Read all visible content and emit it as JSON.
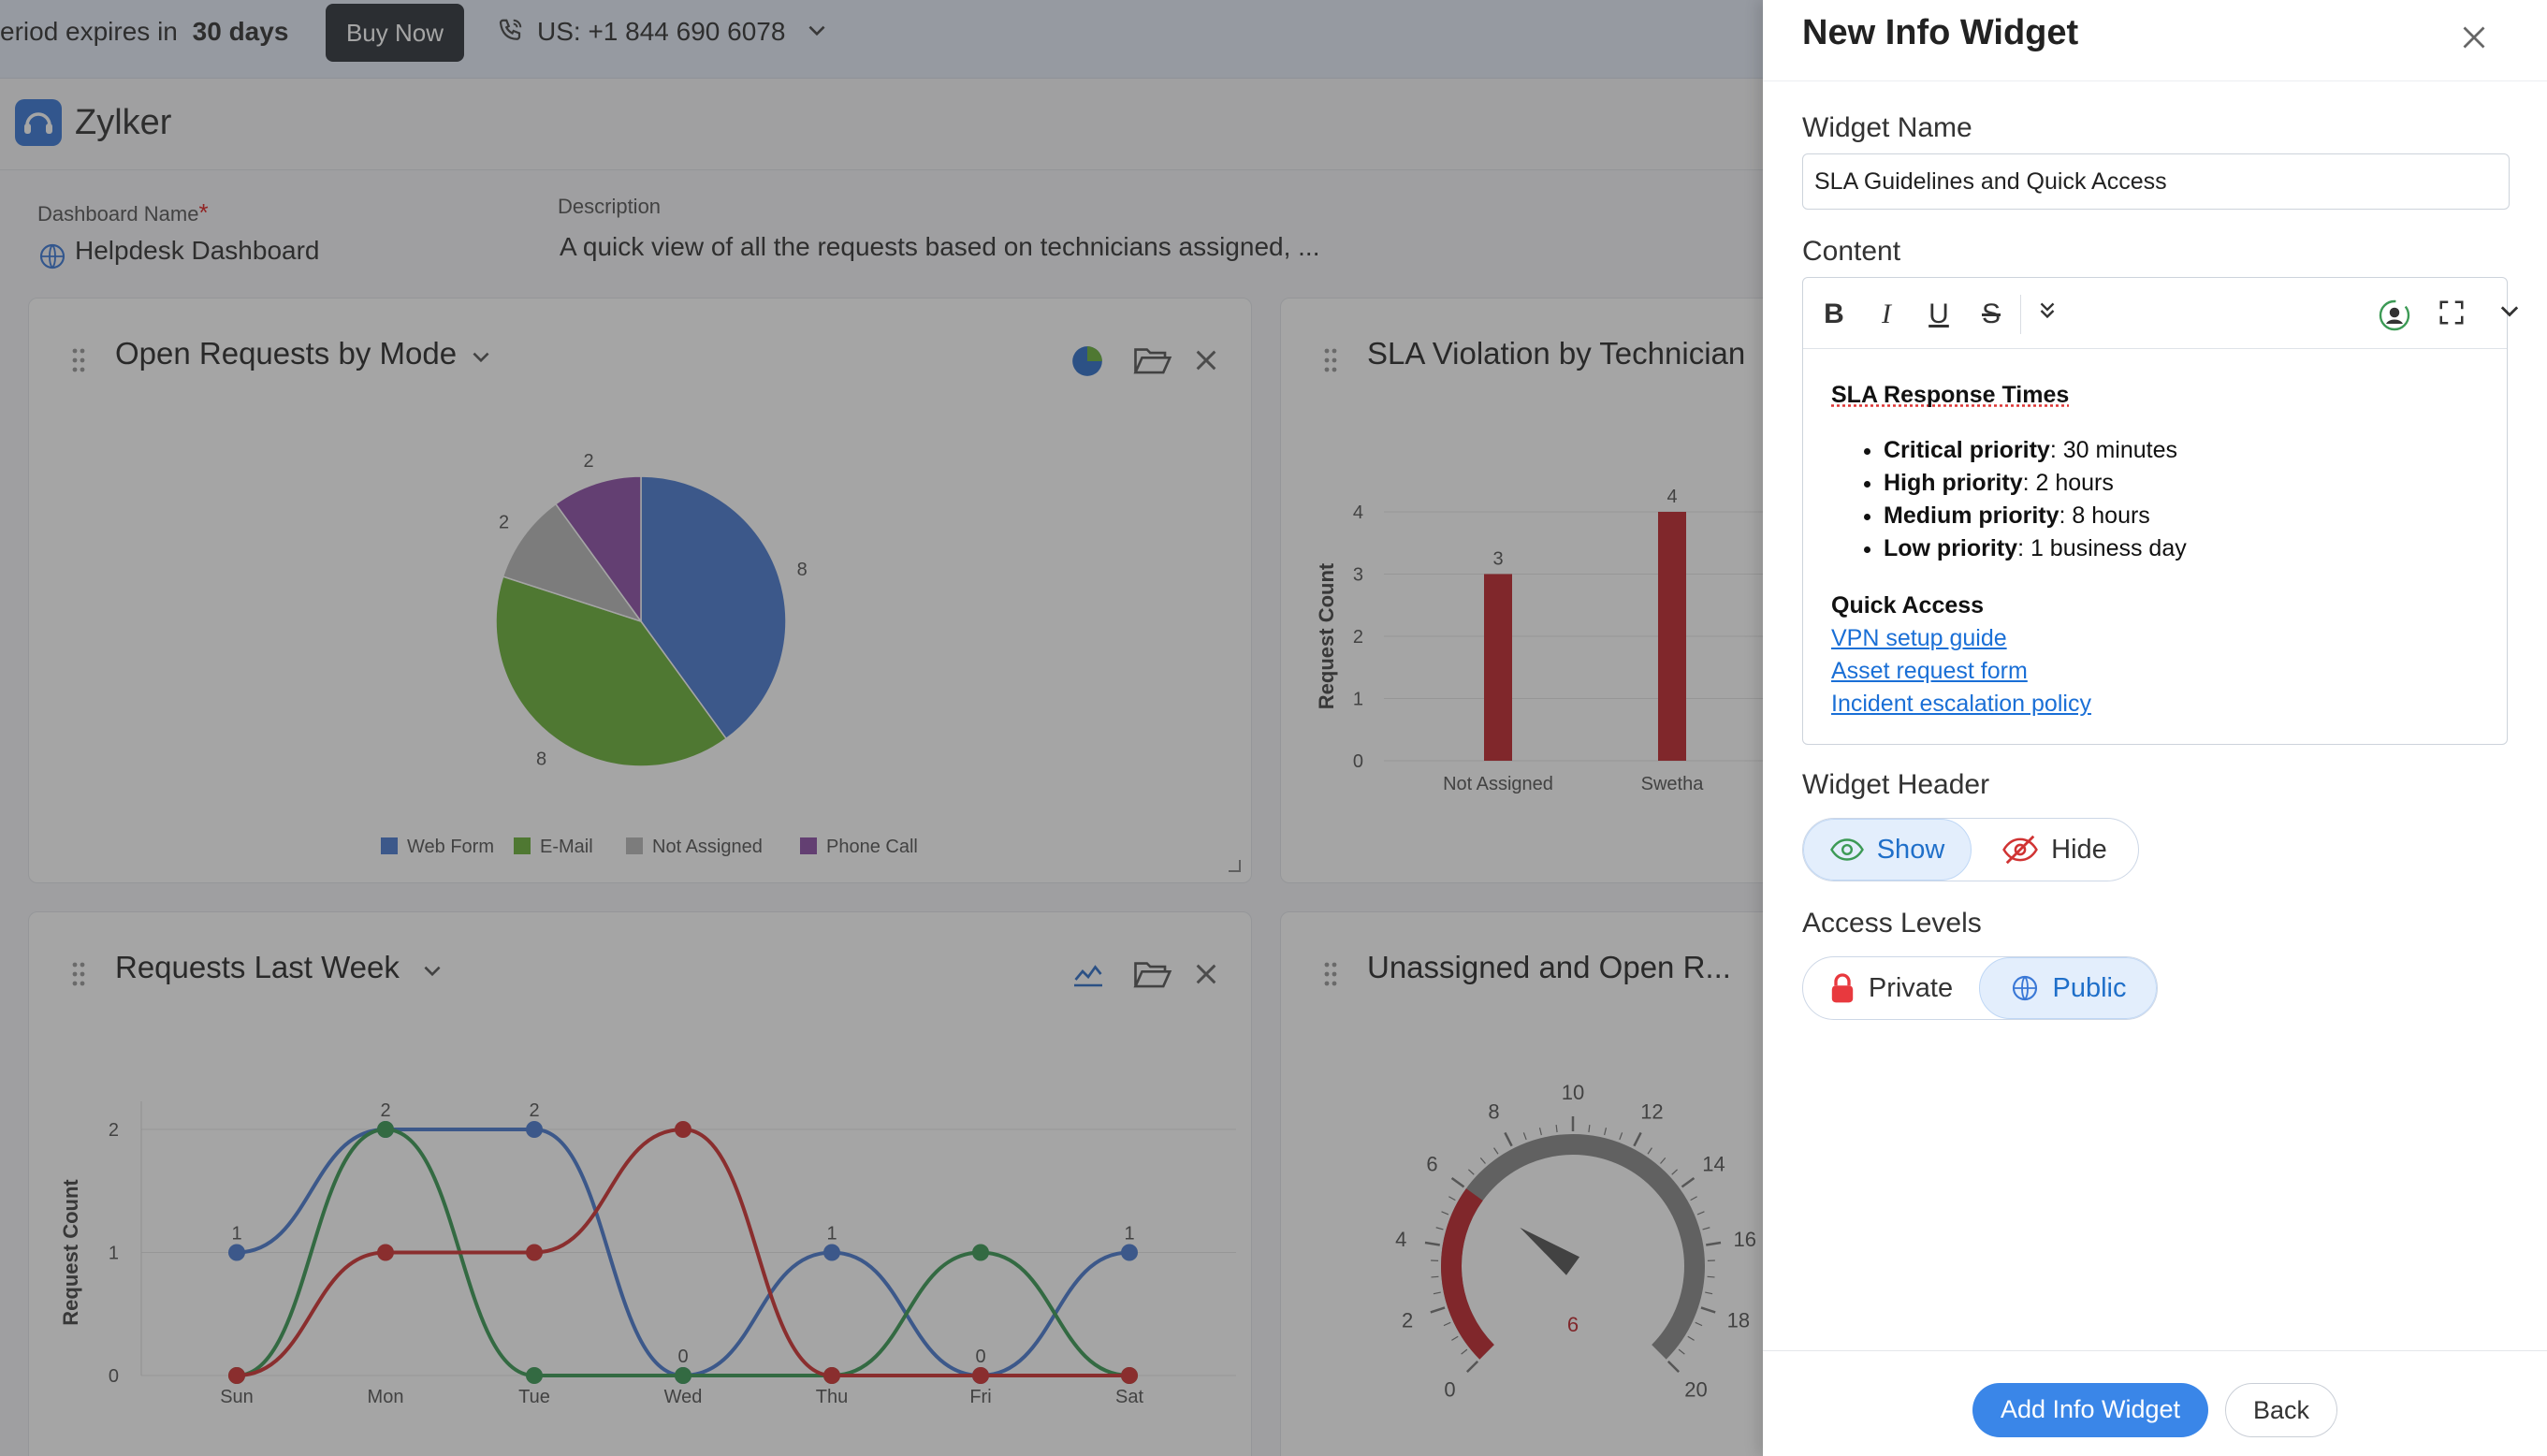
{
  "topbar": {
    "trial_prefix": "eriod expires in",
    "trial_days": "30 days",
    "buy_label": "Buy Now",
    "phone": "US: +1 844 690 6078"
  },
  "app": {
    "name": "Zylker"
  },
  "dashboard": {
    "name_label": "Dashboard Name",
    "required_mark": "*",
    "name_value": "Helpdesk Dashboard",
    "desc_label": "Description",
    "desc_value": "A quick view of all the requests based on technicians assigned, ..."
  },
  "widgets": {
    "open_requests": {
      "title": "Open Requests by Mode"
    },
    "sla_violation": {
      "title": "SLA Violation by Technician"
    },
    "requests_last_week": {
      "title": "Requests Last Week"
    },
    "unassigned": {
      "title": "Unassigned and Open R..."
    }
  },
  "chart_data": [
    {
      "type": "pie",
      "title": "Open Requests by Mode",
      "categories": [
        "Web Form",
        "E-Mail",
        "Not Assigned",
        "Phone Call"
      ],
      "values": [
        8,
        8,
        2,
        2
      ],
      "colors": [
        "#4a7bd0",
        "#6bb23a",
        "#b8b8b8",
        "#8e50a8"
      ],
      "legend": "bottom"
    },
    {
      "type": "bar",
      "title": "SLA Violation by Technician",
      "categories": [
        "Not Assigned",
        "Swetha"
      ],
      "values": [
        3,
        4
      ],
      "ylabel": "Request Count",
      "yticks": [
        "0",
        "1",
        "2",
        "3",
        "4"
      ],
      "ylim": [
        0,
        4
      ],
      "color": "#c0272d"
    },
    {
      "type": "line",
      "title": "Requests Last Week",
      "categories": [
        "Sun",
        "Mon",
        "Tue",
        "Wed",
        "Thu",
        "Fri",
        "Sat"
      ],
      "ylabel": "Request Count",
      "yticks": [
        "0",
        "1",
        "2"
      ],
      "ylim": [
        0,
        2
      ],
      "series": [
        {
          "values": [
            1,
            2,
            2,
            0,
            1,
            0,
            1
          ],
          "color": "#4a7bd0"
        },
        {
          "values": [
            0,
            2,
            0,
            0,
            0,
            1,
            0
          ],
          "color": "#3c9a55"
        },
        {
          "values": [
            0,
            1,
            1,
            2,
            0,
            0,
            0
          ],
          "color": "#d03333"
        }
      ],
      "labels": [
        [
          "1",
          "2",
          "2",
          "0",
          "1",
          "0",
          "1"
        ],
        [
          "0",
          "1",
          "1",
          "2",
          "0",
          "1",
          "0"
        ]
      ]
    },
    {
      "type": "gauge",
      "title": "Unassigned and Open R...",
      "min": 0,
      "max": 20,
      "value": 6,
      "ticks": [
        "0",
        "2",
        "4",
        "6",
        "8",
        "10",
        "12",
        "14",
        "16",
        "18",
        "20"
      ],
      "value_label": "6"
    }
  ],
  "panel": {
    "title": "New Info Widget",
    "widget_name_label": "Widget Name",
    "widget_name_value": "SLA Guidelines and Quick Access",
    "content_label": "Content",
    "content": {
      "sla_heading": "SLA Response Times",
      "items": [
        {
          "bold": "Critical priority",
          "rest": ": 30 minutes"
        },
        {
          "bold": "High priority",
          "rest": ": 2 hours"
        },
        {
          "bold": "Medium priority",
          "rest": ": 8 hours"
        },
        {
          "bold": "Low priority",
          "rest": ": 1 business day"
        }
      ],
      "quick_heading": "Quick Access",
      "links": [
        "VPN setup guide",
        "Asset request form",
        "Incident escalation policy"
      ]
    },
    "header_label": "Widget Header",
    "header_options": [
      "Show",
      "Hide"
    ],
    "header_selected": "Show",
    "access_label": "Access Levels",
    "access_options": [
      "Private",
      "Public"
    ],
    "access_selected": "Public",
    "add_button": "Add Info Widget",
    "back_button": "Back",
    "accent": "#3a86e8"
  }
}
